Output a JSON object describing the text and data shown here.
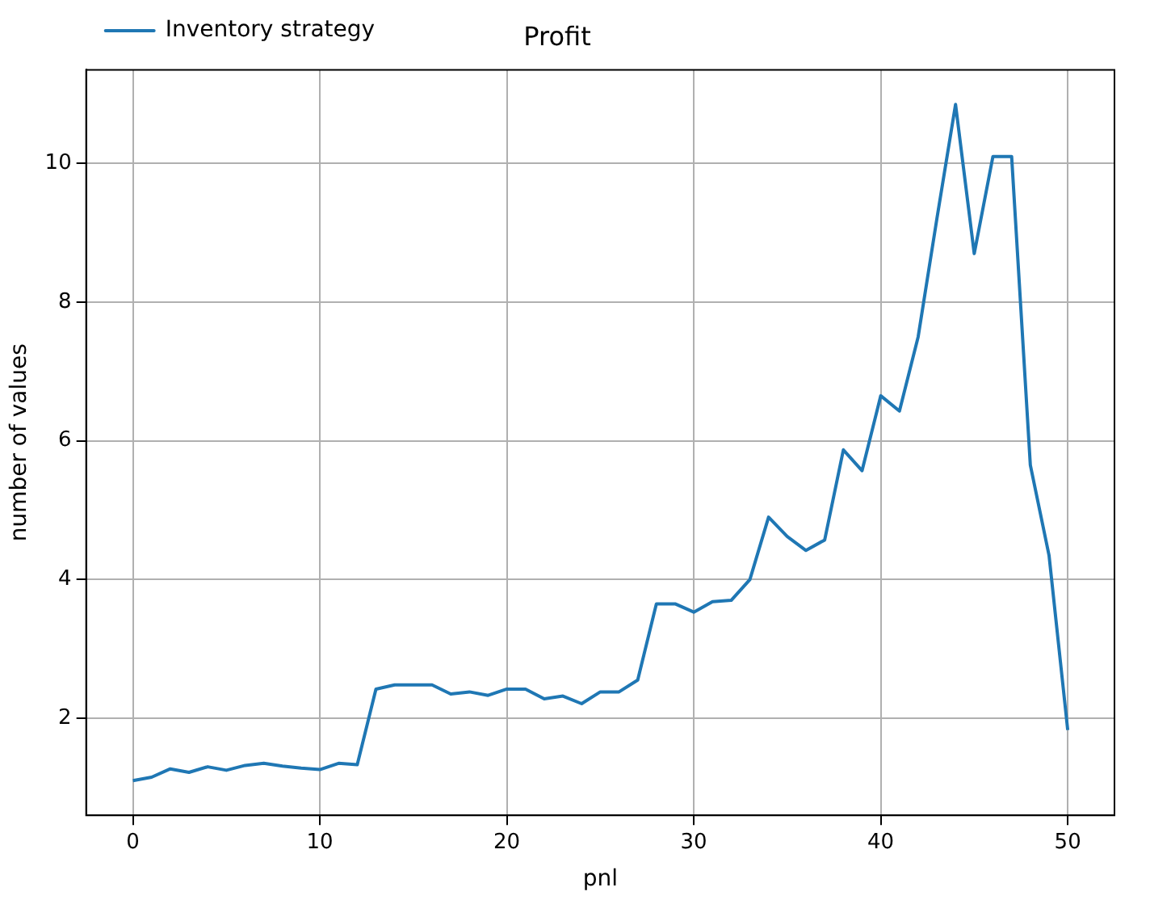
{
  "chart_data": {
    "type": "line",
    "title": "Profit",
    "xlabel": "pnl",
    "ylabel": "number of values",
    "x": [
      0,
      1,
      2,
      3,
      4,
      5,
      6,
      7,
      8,
      9,
      10,
      11,
      12,
      13,
      14,
      15,
      16,
      17,
      18,
      19,
      20,
      21,
      22,
      23,
      24,
      25,
      26,
      27,
      28,
      29,
      30,
      31,
      32,
      33,
      34,
      35,
      36,
      37,
      38,
      39,
      40,
      41,
      42,
      43,
      44,
      45,
      46,
      47,
      48,
      49,
      50
    ],
    "series": [
      {
        "name": "Inventory strategy",
        "color": "#1f77b4",
        "values": [
          1.1,
          1.15,
          1.27,
          1.22,
          1.3,
          1.25,
          1.32,
          1.35,
          1.31,
          1.28,
          1.26,
          1.35,
          1.33,
          2.42,
          2.48,
          2.48,
          2.48,
          2.35,
          2.38,
          2.33,
          2.42,
          2.42,
          2.28,
          2.32,
          2.21,
          2.38,
          2.38,
          2.55,
          3.65,
          3.65,
          3.53,
          3.68,
          3.7,
          4.0,
          4.9,
          4.62,
          4.42,
          4.57,
          5.87,
          5.57,
          6.65,
          6.43,
          7.5,
          9.2,
          10.85,
          8.7,
          10.1,
          10.1,
          5.65,
          4.35,
          1.83
        ]
      }
    ],
    "xlim": [
      -2.5,
      52.5
    ],
    "xticks": [
      0,
      10,
      20,
      30,
      40,
      50
    ],
    "ylim": [
      0.6,
      11.35
    ],
    "yticks": [
      2,
      4,
      6,
      8,
      10
    ],
    "grid": true,
    "legend": "top left",
    "marker": "none",
    "line_style": "solid"
  }
}
